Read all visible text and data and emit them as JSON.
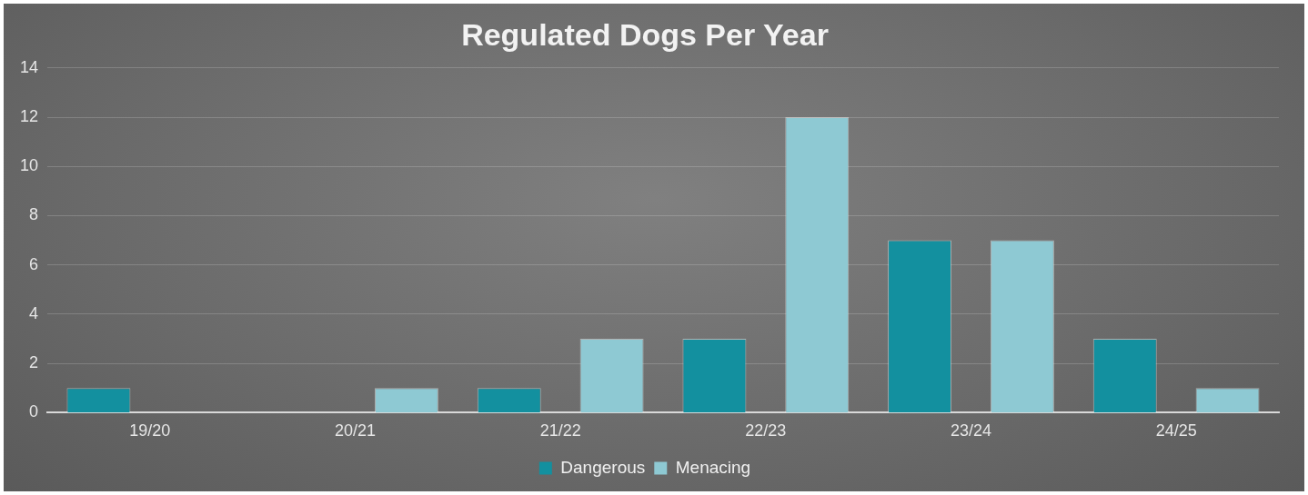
{
  "chart_data": {
    "type": "bar",
    "title": "Regulated Dogs Per Year",
    "categories": [
      "19/20",
      "20/21",
      "21/22",
      "22/23",
      "23/24",
      "24/25"
    ],
    "series": [
      {
        "name": "Dangerous",
        "color": "#13909f",
        "values": [
          1,
          0,
          1,
          3,
          7,
          3
        ]
      },
      {
        "name": "Menacing",
        "color": "#8ec9d3",
        "values": [
          0,
          1,
          3,
          12,
          7,
          1
        ]
      }
    ],
    "ylim": [
      0,
      14
    ],
    "yticks": [
      0,
      2,
      4,
      6,
      8,
      10,
      12,
      14
    ],
    "grid": "y",
    "legend": "bottom"
  }
}
